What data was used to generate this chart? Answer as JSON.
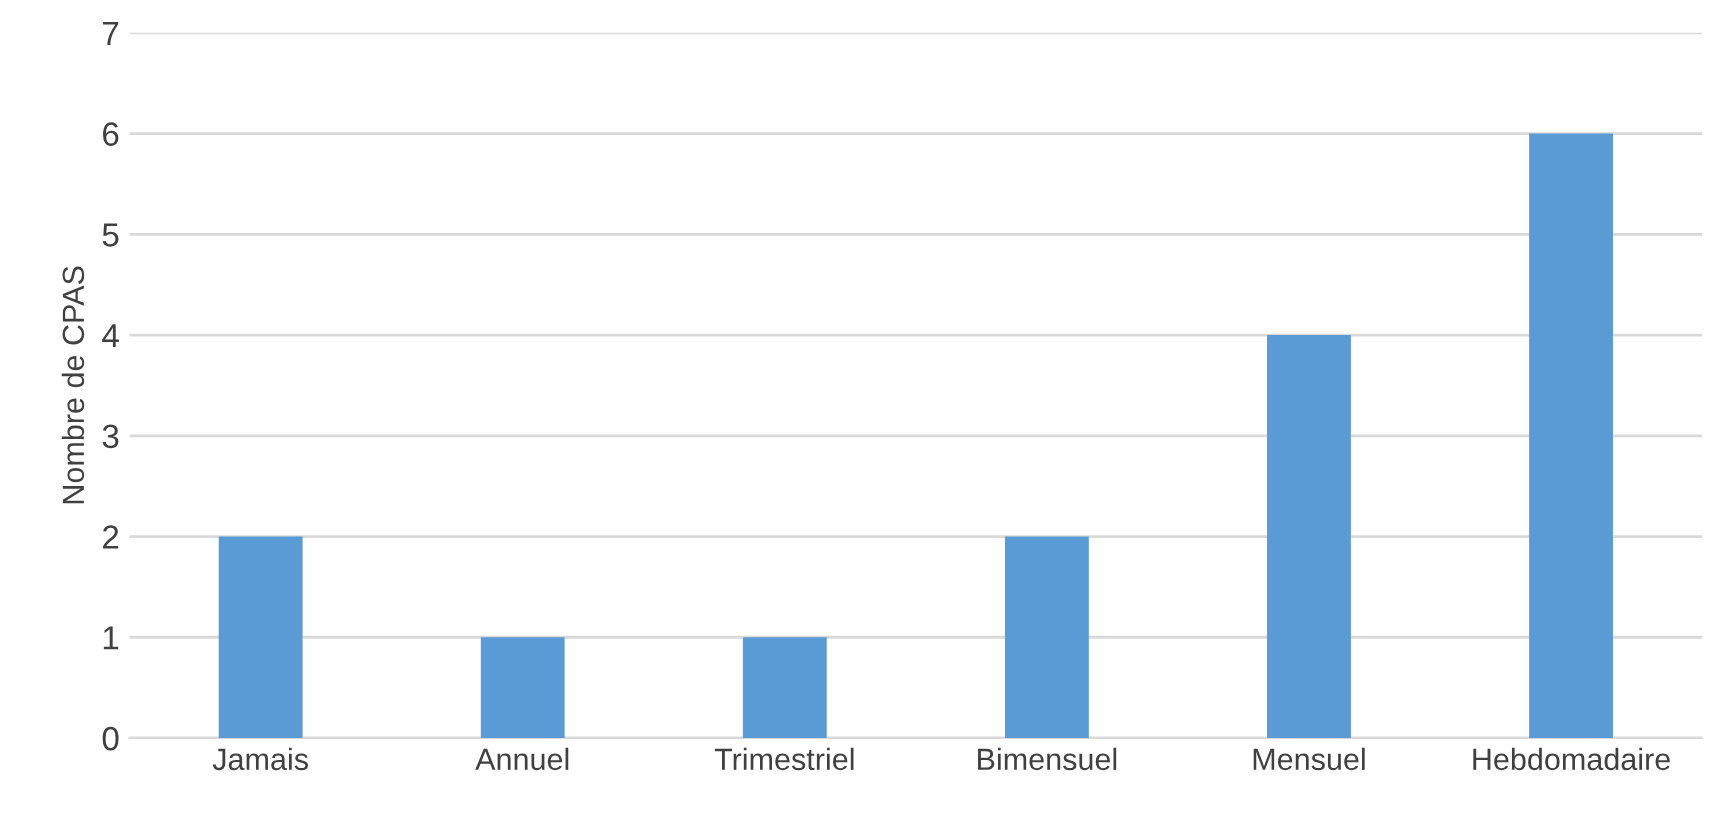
{
  "chart_data": {
    "type": "bar",
    "ylabel": "Nombre de CPAS",
    "categories": [
      "Jamais",
      "Annuel",
      "Trimestriel",
      "Bimensuel",
      "Mensuel",
      "Hebdomadaire"
    ],
    "values": [
      2,
      1,
      1,
      2,
      4,
      6
    ],
    "color": "#5b9bd5",
    "ylim": [
      0,
      7
    ],
    "yticks": [
      0,
      1,
      2,
      3,
      4,
      5,
      6,
      7
    ],
    "grid": "y"
  }
}
